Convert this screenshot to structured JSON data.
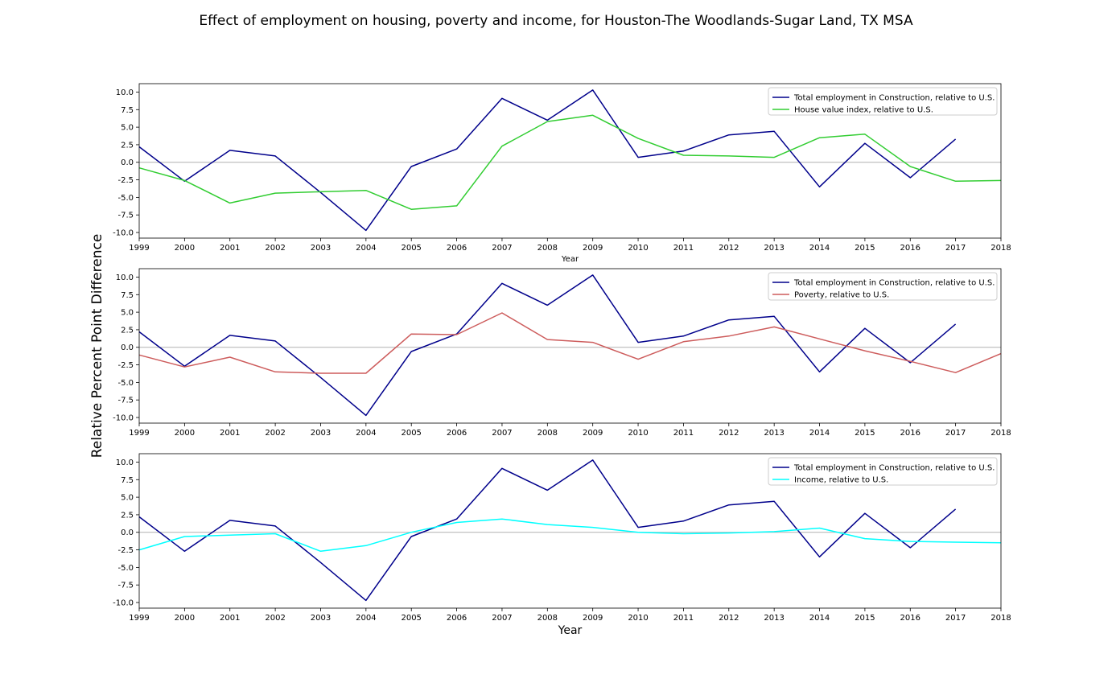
{
  "figure": {
    "title": "Effect of employment on housing, poverty and income, for Houston-The Woodlands-Sugar Land, TX MSA",
    "ylabel": "Relative Percent Point Difference"
  },
  "chart_data": [
    {
      "type": "line",
      "xlabel": "Year",
      "xlim": [
        1999,
        2018
      ],
      "ylim": [
        -10.8,
        11.2
      ],
      "yticks": [
        "10.0",
        "7.5",
        "5.0",
        "2.5",
        "0.0",
        "-2.5",
        "-5.0",
        "-7.5",
        "-10.0"
      ],
      "xticks": [
        "1999",
        "2000",
        "2001",
        "2002",
        "2003",
        "2004",
        "2005",
        "2006",
        "2007",
        "2008",
        "2009",
        "2010",
        "2011",
        "2012",
        "2013",
        "2014",
        "2015",
        "2016",
        "2017",
        "2018"
      ],
      "zero_line": true,
      "legend_position": "upper right",
      "series": [
        {
          "name": "Total employment in Construction, relative to U.S.",
          "color": "#00008b",
          "x": [
            1999,
            2000,
            2001,
            2002,
            2003,
            2004,
            2005,
            2006,
            2007,
            2008,
            2009,
            2010,
            2011,
            2012,
            2013,
            2014,
            2015,
            2016,
            2017
          ],
          "y": [
            2.2,
            -2.7,
            1.7,
            0.9,
            -4.3,
            -9.7,
            -0.6,
            1.9,
            9.1,
            6.0,
            10.3,
            0.7,
            1.6,
            3.9,
            4.4,
            -3.5,
            2.7,
            -2.2,
            3.3
          ]
        },
        {
          "name": "House value index, relative to U.S.",
          "color": "#32cd32",
          "x": [
            1999,
            2000,
            2001,
            2002,
            2003,
            2004,
            2005,
            2006,
            2007,
            2008,
            2009,
            2010,
            2011,
            2012,
            2013,
            2014,
            2015,
            2016,
            2017,
            2018
          ],
          "y": [
            -0.8,
            -2.6,
            -5.8,
            -4.4,
            -4.2,
            -4.0,
            -6.7,
            -6.2,
            2.3,
            5.8,
            6.7,
            3.4,
            1.0,
            0.9,
            0.7,
            3.5,
            4.0,
            -0.6,
            -2.7,
            -2.6
          ]
        }
      ]
    },
    {
      "type": "line",
      "xlabel": "",
      "xlim": [
        1999,
        2018
      ],
      "ylim": [
        -10.8,
        11.2
      ],
      "yticks": [
        "10.0",
        "7.5",
        "5.0",
        "2.5",
        "0.0",
        "-2.5",
        "-5.0",
        "-7.5",
        "-10.0"
      ],
      "xticks": [
        "1999",
        "2000",
        "2001",
        "2002",
        "2003",
        "2004",
        "2005",
        "2006",
        "2007",
        "2008",
        "2009",
        "2010",
        "2011",
        "2012",
        "2013",
        "2014",
        "2015",
        "2016",
        "2017",
        "2018"
      ],
      "zero_line": true,
      "legend_position": "upper right",
      "series": [
        {
          "name": "Total employment in Construction, relative to U.S.",
          "color": "#00008b",
          "x": [
            1999,
            2000,
            2001,
            2002,
            2003,
            2004,
            2005,
            2006,
            2007,
            2008,
            2009,
            2010,
            2011,
            2012,
            2013,
            2014,
            2015,
            2016,
            2017
          ],
          "y": [
            2.2,
            -2.7,
            1.7,
            0.9,
            -4.3,
            -9.7,
            -0.6,
            1.9,
            9.1,
            6.0,
            10.3,
            0.7,
            1.6,
            3.9,
            4.4,
            -3.5,
            2.7,
            -2.2,
            3.3
          ]
        },
        {
          "name": "Poverty, relative to U.S.",
          "color": "#cd5c5c",
          "x": [
            1999,
            2000,
            2001,
            2002,
            2003,
            2004,
            2005,
            2006,
            2007,
            2008,
            2009,
            2010,
            2011,
            2012,
            2013,
            2014,
            2015,
            2016,
            2017,
            2018
          ],
          "y": [
            -1.1,
            -2.8,
            -1.4,
            -3.5,
            -3.7,
            -3.7,
            1.9,
            1.8,
            4.9,
            1.1,
            0.7,
            -1.7,
            0.8,
            1.6,
            2.9,
            1.2,
            -0.5,
            -2.0,
            -3.6,
            -0.9
          ]
        }
      ]
    },
    {
      "type": "line",
      "xlabel": "Year",
      "xlim": [
        1999,
        2018
      ],
      "ylim": [
        -10.8,
        11.2
      ],
      "yticks": [
        "10.0",
        "7.5",
        "5.0",
        "2.5",
        "0.0",
        "-2.5",
        "-5.0",
        "-7.5",
        "-10.0"
      ],
      "xticks": [
        "1999",
        "2000",
        "2001",
        "2002",
        "2003",
        "2004",
        "2005",
        "2006",
        "2007",
        "2008",
        "2009",
        "2010",
        "2011",
        "2012",
        "2013",
        "2014",
        "2015",
        "2016",
        "2017",
        "2018"
      ],
      "zero_line": true,
      "legend_position": "upper right",
      "series": [
        {
          "name": "Total employment in Construction, relative to U.S.",
          "color": "#00008b",
          "x": [
            1999,
            2000,
            2001,
            2002,
            2003,
            2004,
            2005,
            2006,
            2007,
            2008,
            2009,
            2010,
            2011,
            2012,
            2013,
            2014,
            2015,
            2016,
            2017
          ],
          "y": [
            2.2,
            -2.7,
            1.7,
            0.9,
            -4.3,
            -9.7,
            -0.6,
            1.9,
            9.1,
            6.0,
            10.3,
            0.7,
            1.6,
            3.9,
            4.4,
            -3.5,
            2.7,
            -2.2,
            3.3
          ]
        },
        {
          "name": "Income, relative to U.S.",
          "color": "#00ffff",
          "x": [
            1999,
            2000,
            2001,
            2002,
            2003,
            2004,
            2005,
            2006,
            2007,
            2008,
            2009,
            2010,
            2011,
            2012,
            2013,
            2014,
            2015,
            2016,
            2017,
            2018
          ],
          "y": [
            -2.5,
            -0.6,
            -0.4,
            -0.2,
            -2.7,
            -1.9,
            0.0,
            1.4,
            1.9,
            1.1,
            0.7,
            0.0,
            -0.2,
            -0.1,
            0.1,
            0.6,
            -0.9,
            -1.3,
            -1.4,
            -1.5
          ]
        }
      ]
    }
  ]
}
